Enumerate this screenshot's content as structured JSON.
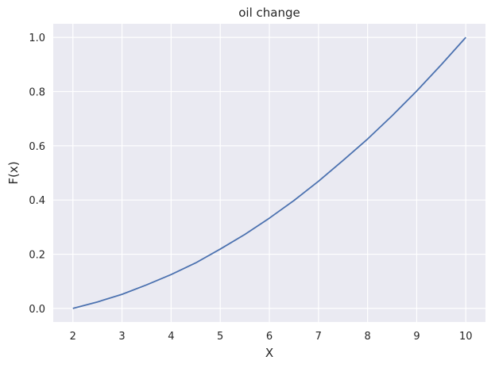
{
  "chart_data": {
    "type": "line",
    "title": "oil change",
    "xlabel": "X",
    "ylabel": "F(x)",
    "xlim": [
      1.6,
      10.4
    ],
    "ylim": [
      -0.05,
      1.05
    ],
    "xticks": [
      2,
      3,
      4,
      5,
      6,
      7,
      8,
      9,
      10
    ],
    "yticks": [
      0.0,
      0.2,
      0.4,
      0.6,
      0.8,
      1.0
    ],
    "xtick_labels": [
      "2",
      "3",
      "4",
      "5",
      "6",
      "7",
      "8",
      "9",
      "10"
    ],
    "ytick_labels": [
      "0.0",
      "0.2",
      "0.4",
      "0.6",
      "0.8",
      "1.0"
    ],
    "grid": true,
    "background": "#EAEAF2",
    "grid_color": "#FFFFFF",
    "line_color": "#4C72B0",
    "series": [
      {
        "x": [
          2,
          2.5,
          3,
          3.5,
          4,
          4.5,
          5,
          5.5,
          6,
          6.5,
          7,
          7.5,
          8,
          8.5,
          9,
          9.5,
          10
        ],
        "y": [
          0.0,
          0.024,
          0.052,
          0.087,
          0.125,
          0.168,
          0.219,
          0.273,
          0.333,
          0.398,
          0.469,
          0.546,
          0.625,
          0.711,
          0.802,
          0.899,
          1.0
        ]
      }
    ]
  }
}
